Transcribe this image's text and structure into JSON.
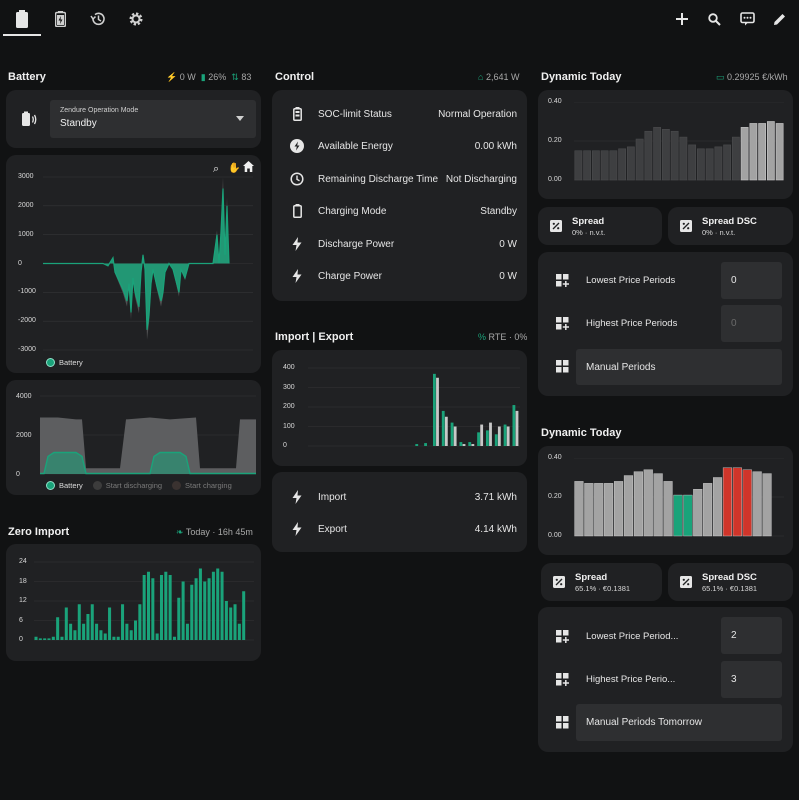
{
  "tabs": [
    {
      "icon": "battery-icon"
    },
    {
      "icon": "battery-charging-icon"
    },
    {
      "icon": "history-icon"
    },
    {
      "icon": "gear-icon"
    }
  ],
  "toolbar": {
    "icons": [
      "plus-icon",
      "search-icon",
      "assist-icon",
      "pencil-icon"
    ]
  },
  "colors": {
    "accent": "#1aa37a",
    "bg": "#111213",
    "card": "#202123",
    "red": "#d0352a",
    "grey_bar": "#a3a3a3"
  },
  "battery": {
    "title": "Battery",
    "badge_power": "0 W",
    "badge_soc": "26%",
    "badge_count": "83",
    "mode_label": "Zendure Operation Mode",
    "mode_value": "Standby",
    "chart1_ticks": [
      "3000",
      "2000",
      "1000",
      "0",
      "-1000",
      "-2000",
      "-3000"
    ],
    "chart1_legend": "Battery",
    "chart2_ticks": [
      "4000",
      "2000",
      "0"
    ],
    "chart2_legend": [
      "Battery",
      "Start discharging",
      "Start charging"
    ]
  },
  "zero_import": {
    "title": "Zero Import",
    "badge": "Today · 16h 45m",
    "ticks": [
      "24",
      "18",
      "12",
      "6",
      "0"
    ]
  },
  "control": {
    "title": "Control",
    "badge": "2,641 W",
    "rows": [
      {
        "icon": "battery-icon",
        "label": "SOC-limit Status",
        "value": "Normal Operation"
      },
      {
        "icon": "flash-icon",
        "label": "Available Energy",
        "value": "0.00 kWh"
      },
      {
        "icon": "clock-icon",
        "label": "Remaining Discharge Time",
        "value": "Not Discharging"
      },
      {
        "icon": "battery-outline-icon",
        "label": "Charging Mode",
        "value": "Standby"
      },
      {
        "icon": "lightning-icon",
        "label": "Discharge Power",
        "value": "0 W"
      },
      {
        "icon": "lightning-icon",
        "label": "Charge Power",
        "value": "0 W"
      }
    ]
  },
  "import_export": {
    "title": "Import | Export",
    "badge": "RTE · 0%",
    "ticks": [
      "400",
      "300",
      "200",
      "100",
      "0"
    ],
    "rows": [
      {
        "icon": "lightning-icon",
        "label": "Import",
        "value": "3.71 kWh"
      },
      {
        "icon": "lightning-icon",
        "label": "Export",
        "value": "4.14 kWh"
      }
    ]
  },
  "dynamic_today": {
    "title": "Dynamic Today",
    "badge": "0.29925 €/kWh",
    "ticks": [
      "0.40",
      "0.20",
      "0.00"
    ],
    "spread": {
      "title": "Spread",
      "value": "0% · n.v.t."
    },
    "spread_dsc": {
      "title": "Spread DSC",
      "value": "0% · n.v.t."
    },
    "rows": [
      {
        "label": "Lowest Price Periods",
        "value": "0"
      },
      {
        "label": "Highest Price Periods",
        "value": "0"
      },
      {
        "label": "Manual Periods",
        "value": ""
      }
    ]
  },
  "dynamic_tomorrow": {
    "title": "Dynamic Today",
    "ticks": [
      "0.40",
      "0.20",
      "0.00"
    ],
    "spread": {
      "title": "Spread",
      "value": "65.1% · €0.1381"
    },
    "spread_dsc": {
      "title": "Spread DSC",
      "value": "65.1% · €0.1381"
    },
    "rows": [
      {
        "label": "Lowest Price Period...",
        "value": "2"
      },
      {
        "label": "Highest Price Perio...",
        "value": "3"
      },
      {
        "label": "Manual Periods Tomorrow",
        "value": ""
      }
    ]
  },
  "chart_data": [
    {
      "type": "bar",
      "title": "",
      "series": [
        {
          "values": [
            0.15,
            0.15,
            0.15,
            0.15,
            0.15,
            0.16,
            0.17,
            0.21,
            0.25,
            0.27,
            0.26,
            0.25,
            0.22,
            0.18,
            0.16,
            0.16,
            0.17,
            0.18,
            0.22,
            0.27,
            0.29,
            0.29,
            0.3,
            0.29
          ]
        }
      ],
      "ylim": [
        0,
        0.4
      ],
      "ticks": [
        0,
        0.2,
        0.4
      ],
      "highlight_from": 19
    },
    {
      "type": "bar",
      "title": "",
      "values": [
        0.28,
        0.27,
        0.27,
        0.27,
        0.28,
        0.31,
        0.33,
        0.34,
        0.32,
        0.28,
        0.21,
        0.21,
        0.24,
        0.27,
        0.3,
        0.35,
        0.35,
        0.34,
        0.33,
        0.32
      ],
      "colors": [
        "grey",
        "grey",
        "grey",
        "grey",
        "grey",
        "grey",
        "grey",
        "grey",
        "grey",
        "grey",
        "green",
        "green",
        "grey",
        "grey",
        "grey",
        "red",
        "red",
        "red",
        "grey",
        "grey"
      ],
      "ylim": [
        0,
        0.4
      ]
    },
    {
      "type": "bar",
      "title": "",
      "series": [
        {
          "name": "import",
          "values": [
            0,
            0,
            0,
            0,
            0,
            0,
            0,
            0,
            0,
            0,
            0,
            0,
            10,
            15,
            370,
            180,
            120,
            20,
            20,
            70,
            80,
            60,
            110,
            210
          ]
        },
        {
          "name": "export",
          "values": [
            0,
            0,
            0,
            0,
            0,
            0,
            0,
            0,
            0,
            0,
            0,
            0,
            0,
            0,
            350,
            150,
            100,
            10,
            10,
            110,
            120,
            100,
            100,
            180
          ]
        }
      ],
      "ylim": [
        0,
        400
      ]
    },
    {
      "type": "bar",
      "title": "",
      "values": [
        1,
        0.5,
        0.5,
        0.5,
        1,
        7,
        1,
        10,
        5,
        3,
        11,
        5,
        8,
        11,
        5,
        3,
        2,
        10,
        1,
        1,
        11,
        5,
        3,
        6,
        11,
        20,
        21,
        19,
        2,
        20,
        21,
        20,
        1,
        13,
        18,
        5,
        17,
        19,
        22,
        18,
        19,
        21,
        22,
        21,
        12,
        10,
        11,
        5,
        15
      ],
      "ylim": [
        0,
        24
      ]
    },
    {
      "type": "line",
      "title": "",
      "legend": [
        "Battery"
      ],
      "ylim": [
        -3000,
        3000
      ],
      "ticks": [
        3000,
        2000,
        1000,
        0,
        -1000,
        -2000,
        -3000
      ]
    },
    {
      "type": "area",
      "title": "",
      "legend": [
        "Battery",
        "Start discharging",
        "Start charging"
      ],
      "ylim": [
        0,
        4000
      ],
      "ticks": [
        4000,
        2000,
        0
      ]
    }
  ]
}
